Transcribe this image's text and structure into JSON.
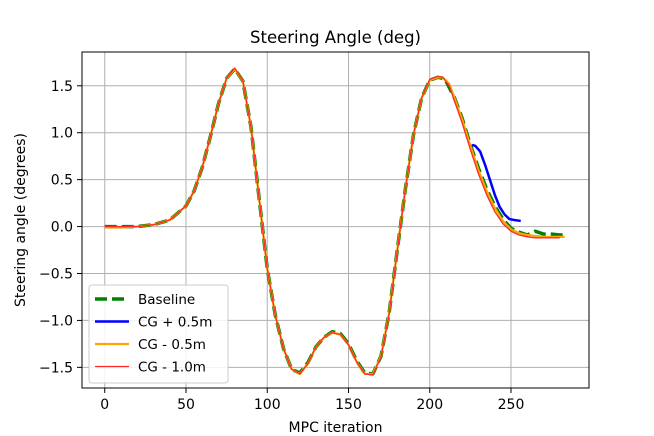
{
  "chart_data": {
    "type": "line",
    "title": "Steering Angle (deg)",
    "xlabel": "MPC iteration",
    "ylabel": "Steering angle (degrees)",
    "xlim": [
      -14,
      298
    ],
    "ylim": [
      -1.72,
      1.86
    ],
    "xticks": [
      0,
      50,
      100,
      150,
      200,
      250
    ],
    "yticks": [
      -1.5,
      -1.0,
      -0.5,
      0.0,
      0.5,
      1.0,
      1.5
    ],
    "xtick_labels": [
      "0",
      "50",
      "100",
      "150",
      "200",
      "250"
    ],
    "ytick_labels": [
      "−1.5",
      "−1.0",
      "−0.5",
      "0.0",
      "0.5",
      "1.0",
      "1.5"
    ],
    "grid": true,
    "legend_position": "lower-left",
    "series": [
      {
        "name": "Baseline",
        "color": "#008000",
        "style": "dashed",
        "x": [
          0,
          10,
          20,
          30,
          40,
          50,
          55,
          60,
          65,
          70,
          75,
          80,
          85,
          90,
          95,
          100,
          105,
          110,
          115,
          120,
          125,
          130,
          135,
          140,
          145,
          150,
          155,
          160,
          165,
          170,
          175,
          180,
          185,
          190,
          195,
          200,
          205,
          208,
          210,
          215,
          220,
          225,
          230,
          235,
          240,
          245,
          250,
          255,
          260,
          265,
          270,
          275,
          280,
          283
        ],
        "y": [
          0.0,
          0.0,
          0.0,
          0.02,
          0.07,
          0.22,
          0.38,
          0.63,
          0.96,
          1.31,
          1.58,
          1.68,
          1.55,
          1.06,
          0.3,
          -0.45,
          -0.95,
          -1.3,
          -1.52,
          -1.56,
          -1.45,
          -1.28,
          -1.18,
          -1.12,
          -1.14,
          -1.25,
          -1.43,
          -1.56,
          -1.57,
          -1.38,
          -0.92,
          -0.25,
          0.4,
          0.98,
          1.37,
          1.56,
          1.59,
          1.58,
          1.55,
          1.38,
          1.15,
          0.87,
          0.62,
          0.4,
          0.22,
          0.08,
          -0.02,
          -0.06,
          -0.09,
          -0.05,
          -0.08,
          -0.08,
          -0.09,
          -0.09
        ]
      },
      {
        "name": "CG + 0.5m",
        "color": "#0000ff",
        "style": "solid",
        "x": [
          226,
          228,
          231,
          234,
          237,
          240,
          243,
          246,
          249,
          252,
          256
        ],
        "y": [
          0.87,
          0.86,
          0.8,
          0.66,
          0.5,
          0.34,
          0.21,
          0.13,
          0.08,
          0.07,
          0.06
        ]
      },
      {
        "name": "CG - 0.5m",
        "color": "#ffa500",
        "style": "solid",
        "x": [
          0,
          10,
          20,
          30,
          40,
          50,
          55,
          60,
          65,
          70,
          75,
          80,
          85,
          90,
          95,
          100,
          105,
          110,
          115,
          120,
          125,
          130,
          135,
          140,
          145,
          150,
          155,
          160,
          165,
          170,
          175,
          180,
          185,
          190,
          195,
          200,
          205,
          208,
          212,
          215,
          220,
          225,
          230,
          235,
          240,
          245,
          250,
          255,
          260,
          265,
          270,
          275,
          280,
          283
        ],
        "y": [
          -0.01,
          -0.01,
          0.0,
          0.02,
          0.07,
          0.22,
          0.38,
          0.63,
          0.96,
          1.31,
          1.58,
          1.68,
          1.55,
          1.06,
          0.3,
          -0.45,
          -0.95,
          -1.3,
          -1.52,
          -1.57,
          -1.46,
          -1.28,
          -1.18,
          -1.13,
          -1.15,
          -1.26,
          -1.44,
          -1.57,
          -1.57,
          -1.38,
          -0.92,
          -0.25,
          0.4,
          0.98,
          1.37,
          1.56,
          1.59,
          1.59,
          1.52,
          1.38,
          1.14,
          0.86,
          0.6,
          0.38,
          0.2,
          0.06,
          -0.03,
          -0.07,
          -0.09,
          -0.1,
          -0.11,
          -0.11,
          -0.11,
          -0.11
        ]
      },
      {
        "name": "CG - 1.0m",
        "color": "#ff2a2a",
        "style": "solid",
        "x": [
          0,
          10,
          20,
          30,
          40,
          50,
          55,
          60,
          65,
          70,
          75,
          80,
          85,
          90,
          95,
          100,
          105,
          110,
          115,
          120,
          125,
          130,
          135,
          140,
          145,
          150,
          155,
          160,
          165,
          170,
          175,
          180,
          185,
          190,
          195,
          200,
          205,
          208,
          212,
          215,
          220,
          225,
          230,
          235,
          240,
          245,
          250,
          255,
          260,
          265,
          270,
          275,
          280
        ],
        "y": [
          0.0,
          0.0,
          0.0,
          0.02,
          0.07,
          0.22,
          0.38,
          0.63,
          0.96,
          1.31,
          1.58,
          1.69,
          1.55,
          1.06,
          0.3,
          -0.45,
          -0.95,
          -1.3,
          -1.52,
          -1.57,
          -1.46,
          -1.28,
          -1.18,
          -1.13,
          -1.15,
          -1.26,
          -1.44,
          -1.57,
          -1.58,
          -1.39,
          -0.93,
          -0.26,
          0.4,
          0.98,
          1.37,
          1.57,
          1.6,
          1.59,
          1.5,
          1.35,
          1.1,
          0.82,
          0.56,
          0.34,
          0.16,
          0.03,
          -0.05,
          -0.09,
          -0.11,
          -0.12,
          -0.12,
          -0.12,
          -0.12
        ]
      }
    ]
  }
}
